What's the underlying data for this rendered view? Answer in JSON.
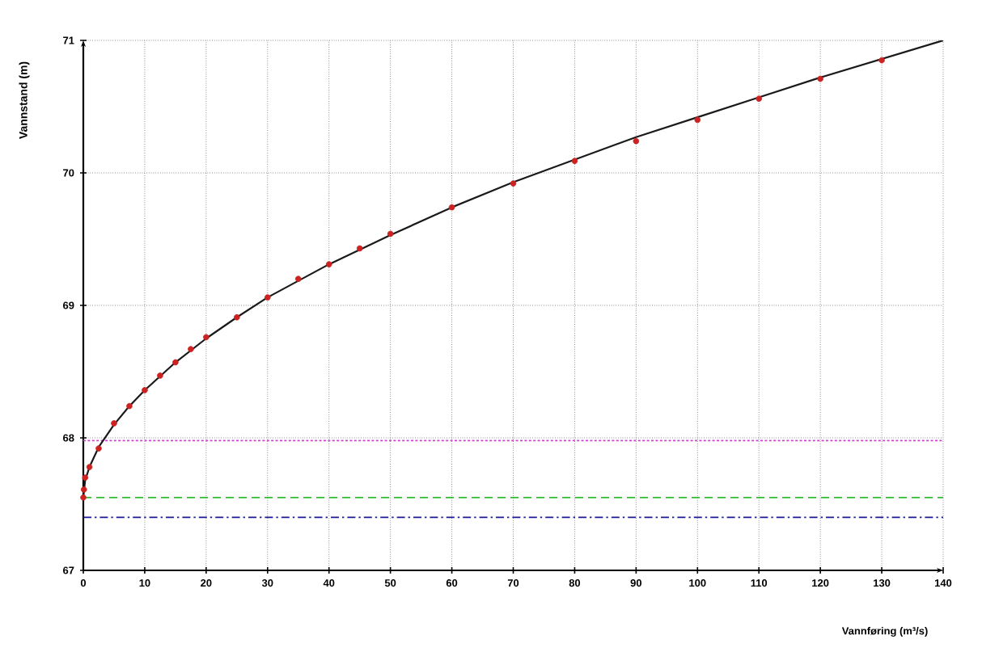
{
  "chart_data": {
    "type": "scatter",
    "xlabel": "Vannføring (m³/s)",
    "ylabel": "Vannstand (m)",
    "xlim": [
      0,
      140
    ],
    "ylim": [
      67,
      71
    ],
    "xticks": [
      0,
      10,
      20,
      30,
      40,
      50,
      60,
      70,
      80,
      90,
      100,
      110,
      120,
      130,
      140
    ],
    "yticks": [
      67,
      68,
      69,
      70,
      71
    ],
    "grid": true,
    "series": [
      {
        "type": "line",
        "color": "#1a1a1a",
        "marker": "none",
        "line_style": "solid",
        "x": [
          0,
          0.3,
          1,
          2.5,
          5,
          7.5,
          10,
          15,
          20,
          25,
          30,
          40,
          50,
          60,
          70,
          80,
          90,
          100,
          110,
          120,
          130,
          140
        ],
        "values": [
          67.55,
          67.68,
          67.78,
          67.93,
          68.1,
          68.24,
          68.36,
          68.57,
          68.75,
          68.91,
          69.06,
          69.31,
          69.53,
          69.74,
          69.93,
          70.1,
          70.27,
          70.42,
          70.57,
          70.72,
          70.86,
          71.0
        ]
      },
      {
        "color": "#cc2222",
        "marker": "circle",
        "x": [
          0,
          0.1,
          0.3,
          1,
          2.5,
          5,
          7.5,
          10,
          12.5,
          15,
          17.5,
          20,
          25,
          30,
          35,
          40,
          45,
          50,
          60,
          70,
          80,
          90,
          100,
          110,
          120,
          130
        ],
        "values": [
          67.55,
          67.61,
          67.7,
          67.78,
          67.92,
          68.11,
          68.24,
          68.36,
          68.47,
          68.57,
          68.67,
          68.76,
          68.91,
          69.06,
          69.2,
          69.31,
          69.43,
          69.54,
          69.74,
          69.92,
          70.09,
          70.24,
          70.4,
          70.56,
          70.71,
          70.85
        ]
      }
    ],
    "ref_lines": [
      {
        "axis": "y",
        "value": 67.98,
        "color": "#cc44cc",
        "line_style": "dotted"
      },
      {
        "axis": "y",
        "value": 67.55,
        "color": "#33bb33",
        "line_style": "dashed"
      },
      {
        "axis": "y",
        "value": 67.4,
        "color": "#1a1a99",
        "line_style": "dashdot"
      }
    ]
  }
}
